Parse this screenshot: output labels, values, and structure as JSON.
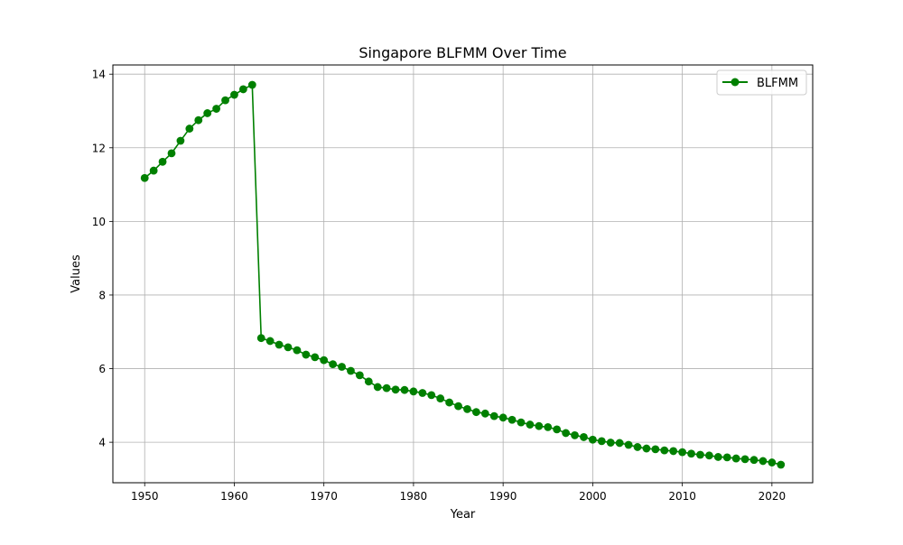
{
  "chart_data": {
    "type": "line",
    "title": "Singapore BLFMM Over Time",
    "xlabel": "Year",
    "ylabel": "Values",
    "xlim": [
      1946.45,
      2024.55
    ],
    "ylim": [
      2.9,
      14.25
    ],
    "xticks": [
      1950,
      1960,
      1970,
      1980,
      1990,
      2000,
      2010,
      2020
    ],
    "yticks": [
      4,
      6,
      8,
      10,
      12,
      14
    ],
    "grid": true,
    "legend_position": "top-right",
    "series": [
      {
        "name": "BLFMM",
        "color": "#008000",
        "marker": "circle",
        "x": [
          1950,
          1951,
          1952,
          1953,
          1954,
          1955,
          1956,
          1957,
          1958,
          1959,
          1960,
          1961,
          1962,
          1963,
          1964,
          1965,
          1966,
          1967,
          1968,
          1969,
          1970,
          1971,
          1972,
          1973,
          1974,
          1975,
          1976,
          1977,
          1978,
          1979,
          1980,
          1981,
          1982,
          1983,
          1984,
          1985,
          1986,
          1987,
          1988,
          1989,
          1990,
          1991,
          1992,
          1993,
          1994,
          1995,
          1996,
          1997,
          1998,
          1999,
          2000,
          2001,
          2002,
          2003,
          2004,
          2005,
          2006,
          2007,
          2008,
          2009,
          2010,
          2011,
          2012,
          2013,
          2014,
          2015,
          2016,
          2017,
          2018,
          2019,
          2020,
          2021
        ],
        "y": [
          11.18,
          11.38,
          11.62,
          11.85,
          12.19,
          12.52,
          12.75,
          12.94,
          13.06,
          13.29,
          13.44,
          13.59,
          13.71,
          6.83,
          6.75,
          6.65,
          6.58,
          6.5,
          6.38,
          6.31,
          6.23,
          6.12,
          6.05,
          5.94,
          5.82,
          5.65,
          5.5,
          5.47,
          5.43,
          5.42,
          5.38,
          5.34,
          5.28,
          5.19,
          5.08,
          4.98,
          4.9,
          4.82,
          4.78,
          4.71,
          4.67,
          4.61,
          4.54,
          4.48,
          4.44,
          4.41,
          4.35,
          4.25,
          4.19,
          4.14,
          4.07,
          4.03,
          3.99,
          3.98,
          3.93,
          3.87,
          3.83,
          3.81,
          3.78,
          3.76,
          3.73,
          3.69,
          3.66,
          3.64,
          3.6,
          3.59,
          3.56,
          3.54,
          3.52,
          3.49,
          3.45,
          3.39
        ]
      }
    ]
  }
}
